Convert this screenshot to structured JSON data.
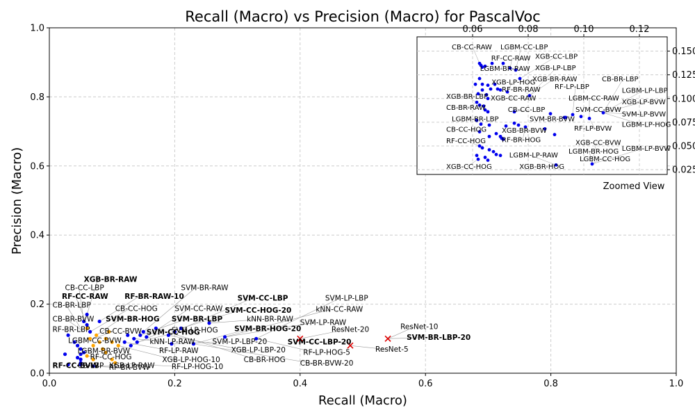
{
  "chart_data": {
    "type": "scatter",
    "title": "Recall (Macro) vs Precision (Macro) for PascalVoc",
    "xlabel": "Recall (Macro)",
    "ylabel": "Precision (Macro)",
    "xlim": [
      0.0,
      1.0
    ],
    "ylim": [
      0.0,
      1.0
    ],
    "xticks": [
      "0.0",
      "0.2",
      "0.4",
      "0.6",
      "0.8",
      "1.0"
    ],
    "yticks": [
      "0.0",
      "0.2",
      "0.4",
      "0.6",
      "0.8",
      "1.0"
    ],
    "grid": true,
    "colors": {
      "blue_points": "#0000ee",
      "orange_points": "#ffa500",
      "red_markers": "#dd0000",
      "grid": "#cccccc",
      "leader_lines": "#999999"
    },
    "points": [
      {
        "x": 0.03,
        "y": 0.11,
        "c": "blue"
      },
      {
        "x": 0.04,
        "y": 0.09,
        "c": "blue"
      },
      {
        "x": 0.045,
        "y": 0.08,
        "c": "blue"
      },
      {
        "x": 0.05,
        "y": 0.07,
        "c": "blue"
      },
      {
        "x": 0.05,
        "y": 0.04,
        "c": "blue"
      },
      {
        "x": 0.05,
        "y": 0.03,
        "c": "blue"
      },
      {
        "x": 0.055,
        "y": 0.15,
        "c": "blue"
      },
      {
        "x": 0.055,
        "y": 0.06,
        "c": "blue"
      },
      {
        "x": 0.06,
        "y": 0.17,
        "c": "blue"
      },
      {
        "x": 0.06,
        "y": 0.14,
        "c": "blue"
      },
      {
        "x": 0.065,
        "y": 0.12,
        "c": "blue"
      },
      {
        "x": 0.07,
        "y": 0.02,
        "c": "blue"
      },
      {
        "x": 0.08,
        "y": 0.15,
        "c": "blue"
      },
      {
        "x": 0.025,
        "y": 0.055,
        "c": "blue"
      },
      {
        "x": 0.03,
        "y": 0.025,
        "c": "blue"
      },
      {
        "x": 0.045,
        "y": 0.045,
        "c": "blue"
      },
      {
        "x": 0.05,
        "y": 0.055,
        "c": "blue"
      },
      {
        "x": 0.05,
        "y": 0.025,
        "c": "blue"
      },
      {
        "x": 0.12,
        "y": 0.09,
        "c": "blue"
      },
      {
        "x": 0.125,
        "y": 0.11,
        "c": "blue"
      },
      {
        "x": 0.13,
        "y": 0.08,
        "c": "blue"
      },
      {
        "x": 0.135,
        "y": 0.1,
        "c": "blue"
      },
      {
        "x": 0.14,
        "y": 0.09,
        "c": "blue"
      },
      {
        "x": 0.145,
        "y": 0.11,
        "c": "blue"
      },
      {
        "x": 0.15,
        "y": 0.12,
        "c": "blue"
      },
      {
        "x": 0.155,
        "y": 0.105,
        "c": "blue"
      },
      {
        "x": 0.17,
        "y": 0.13,
        "c": "blue"
      },
      {
        "x": 0.19,
        "y": 0.11,
        "c": "blue"
      },
      {
        "x": 0.195,
        "y": 0.085,
        "c": "blue"
      },
      {
        "x": 0.2,
        "y": 0.12,
        "c": "blue"
      },
      {
        "x": 0.21,
        "y": 0.13,
        "c": "blue"
      },
      {
        "x": 0.23,
        "y": 0.085,
        "c": "blue"
      },
      {
        "x": 0.255,
        "y": 0.145,
        "c": "blue"
      },
      {
        "x": 0.28,
        "y": 0.105,
        "c": "blue"
      },
      {
        "x": 0.33,
        "y": 0.1,
        "c": "blue"
      },
      {
        "x": 0.06,
        "y": 0.13,
        "c": "orange"
      },
      {
        "x": 0.065,
        "y": 0.1,
        "c": "orange"
      },
      {
        "x": 0.07,
        "y": 0.08,
        "c": "orange"
      },
      {
        "x": 0.075,
        "y": 0.11,
        "c": "orange"
      },
      {
        "x": 0.08,
        "y": 0.09,
        "c": "orange"
      },
      {
        "x": 0.085,
        "y": 0.07,
        "c": "orange"
      },
      {
        "x": 0.09,
        "y": 0.06,
        "c": "orange"
      },
      {
        "x": 0.095,
        "y": 0.12,
        "c": "orange"
      },
      {
        "x": 0.1,
        "y": 0.04,
        "c": "orange"
      },
      {
        "x": 0.105,
        "y": 0.03,
        "c": "orange"
      },
      {
        "x": 0.11,
        "y": 0.08,
        "c": "orange"
      },
      {
        "x": 0.06,
        "y": 0.05,
        "c": "orange"
      },
      {
        "x": 0.07,
        "y": 0.04,
        "c": "orange"
      },
      {
        "x": 0.09,
        "y": 0.1,
        "c": "orange"
      },
      {
        "x": 0.1,
        "y": 0.09,
        "c": "orange"
      }
    ],
    "red_markers": [
      {
        "x": 0.4,
        "y": 0.1,
        "label": "ResNet-20"
      },
      {
        "x": 0.48,
        "y": 0.08,
        "label": "ResNet-5"
      },
      {
        "x": 0.54,
        "y": 0.1,
        "label": "ResNet-10"
      }
    ],
    "annotations": [
      {
        "text": "XGB-BR-RAW",
        "bold": true,
        "tx": 0.055,
        "ty": 0.265,
        "px": 0.06,
        "py": 0.17
      },
      {
        "text": "CB-CC-LBP",
        "bold": false,
        "tx": 0.025,
        "ty": 0.24,
        "px": 0.055,
        "py": 0.15
      },
      {
        "text": "RF-CC-RAW",
        "bold": true,
        "tx": 0.02,
        "ty": 0.215,
        "px": 0.06,
        "py": 0.14
      },
      {
        "text": "CB-BR-LBP",
        "bold": false,
        "tx": 0.005,
        "ty": 0.19,
        "px": 0.05,
        "py": 0.13
      },
      {
        "text": "CB-BR-BVW",
        "bold": false,
        "tx": 0.005,
        "ty": 0.15,
        "px": 0.055,
        "py": 0.12
      },
      {
        "text": "RF-BR-LBP",
        "bold": false,
        "tx": 0.005,
        "ty": 0.12,
        "px": 0.03,
        "py": 0.11
      },
      {
        "text": "LGBM-CC-BVW",
        "bold": false,
        "tx": 0.03,
        "ty": 0.088,
        "px": 0.045,
        "py": 0.08
      },
      {
        "text": "LGBM-BR-BVW",
        "bold": false,
        "tx": 0.045,
        "ty": 0.057,
        "px": 0.05,
        "py": 0.07
      },
      {
        "text": "RF-CC-HOG",
        "bold": false,
        "tx": 0.065,
        "ty": 0.04,
        "px": 0.06,
        "py": 0.05
      },
      {
        "text": "RF-CC-BVW",
        "bold": true,
        "tx": 0.005,
        "ty": 0.015,
        "px": 0.03,
        "py": 0.025
      },
      {
        "text": "CB-LBP",
        "bold": false,
        "tx": 0.045,
        "ty": 0.015,
        "px": 0.05,
        "py": 0.03
      },
      {
        "text": "XGB-LP-RAW",
        "bold": false,
        "tx": 0.095,
        "ty": 0.015,
        "px": 0.07,
        "py": 0.02
      },
      {
        "text": "RF-BR-BVW",
        "bold": false,
        "tx": 0.095,
        "ty": 0.01,
        "px": 0.07,
        "py": 0.02
      },
      {
        "text": "RF-BR-RAW-10",
        "bold": true,
        "tx": 0.12,
        "ty": 0.215,
        "px": 0.08,
        "py": 0.15
      },
      {
        "text": "SVM-BR-RAW",
        "bold": false,
        "tx": 0.21,
        "ty": 0.24,
        "px": 0.15,
        "py": 0.12
      },
      {
        "text": "CB-CC-HOG",
        "bold": false,
        "tx": 0.105,
        "ty": 0.18,
        "px": 0.065,
        "py": 0.12
      },
      {
        "text": "SVM-BR-HOG",
        "bold": true,
        "tx": 0.09,
        "ty": 0.15,
        "px": 0.075,
        "py": 0.11
      },
      {
        "text": "CB-CC-BVW",
        "bold": false,
        "tx": 0.08,
        "ty": 0.115,
        "px": 0.07,
        "py": 0.1
      },
      {
        "text": "SVM-CC-RAW",
        "bold": false,
        "tx": 0.2,
        "ty": 0.18,
        "px": 0.155,
        "py": 0.105
      },
      {
        "text": "SVM-BR-LBP",
        "bold": true,
        "tx": 0.195,
        "ty": 0.15,
        "px": 0.145,
        "py": 0.11
      },
      {
        "text": "SVM-LP-HOG",
        "bold": false,
        "tx": 0.195,
        "ty": 0.118,
        "px": 0.14,
        "py": 0.09
      },
      {
        "text": "SVM-CC-HOG",
        "bold": true,
        "tx": 0.155,
        "ty": 0.112,
        "px": 0.13,
        "py": 0.08
      },
      {
        "text": "kNN-LP-RAW",
        "bold": false,
        "tx": 0.16,
        "ty": 0.085,
        "px": 0.135,
        "py": 0.1
      },
      {
        "text": "RF-LP-RAW",
        "bold": false,
        "tx": 0.175,
        "ty": 0.058,
        "px": 0.12,
        "py": 0.09
      },
      {
        "text": "XGB-LP-HOG-10",
        "bold": false,
        "tx": 0.18,
        "ty": 0.032,
        "px": 0.11,
        "py": 0.08
      },
      {
        "text": "RF-LP-HOG-10",
        "bold": false,
        "tx": 0.195,
        "ty": 0.012,
        "px": 0.1,
        "py": 0.03
      },
      {
        "text": "SVM-CC-LBP",
        "bold": true,
        "tx": 0.3,
        "ty": 0.21,
        "px": 0.2,
        "py": 0.12
      },
      {
        "text": "SVM-CC-HOG-20",
        "bold": true,
        "tx": 0.28,
        "ty": 0.175,
        "px": 0.21,
        "py": 0.13
      },
      {
        "text": "kNN-BR-RAW",
        "bold": false,
        "tx": 0.315,
        "ty": 0.15,
        "px": 0.255,
        "py": 0.145
      },
      {
        "text": "SVM-BR-HOG-20",
        "bold": true,
        "tx": 0.295,
        "ty": 0.122,
        "px": 0.23,
        "py": 0.085
      },
      {
        "text": "SVM-LP-LBP-20",
        "bold": false,
        "tx": 0.26,
        "ty": 0.085,
        "px": 0.195,
        "py": 0.085
      },
      {
        "text": "XGB-LP-LBP-20",
        "bold": false,
        "tx": 0.29,
        "ty": 0.06,
        "px": 0.19,
        "py": 0.11
      },
      {
        "text": "CB-BR-HOG",
        "bold": false,
        "tx": 0.31,
        "ty": 0.032,
        "px": 0.17,
        "py": 0.13
      },
      {
        "text": "SVM-LP-LBP",
        "bold": false,
        "tx": 0.44,
        "ty": 0.21,
        "px": 0.33,
        "py": 0.1
      },
      {
        "text": "kNN-CC-RAW",
        "bold": false,
        "tx": 0.425,
        "ty": 0.178,
        "px": 0.28,
        "py": 0.105
      },
      {
        "text": "SVM-LP-RAW",
        "bold": false,
        "tx": 0.4,
        "ty": 0.14,
        "px": 0.28,
        "py": 0.105
      },
      {
        "text": "ResNet-20",
        "bold": false,
        "tx": 0.45,
        "ty": 0.12,
        "px": 0.4,
        "py": 0.1
      },
      {
        "text": "SVM-CC-LBP-20",
        "bold": true,
        "tx": 0.38,
        "ty": 0.083,
        "px": 0.48,
        "py": 0.09
      },
      {
        "text": "RF-LP-HOG-5",
        "bold": false,
        "tx": 0.405,
        "ty": 0.053,
        "px": 0.33,
        "py": 0.1
      },
      {
        "text": "CB-BR-BVW-20",
        "bold": false,
        "tx": 0.4,
        "ty": 0.022,
        "px": 0.23,
        "py": 0.085
      },
      {
        "text": "ResNet-10",
        "bold": false,
        "tx": 0.56,
        "ty": 0.128,
        "px": 0.54,
        "py": 0.1
      },
      {
        "text": "SVM-BR-LBP-20",
        "bold": true,
        "tx": 0.57,
        "ty": 0.097,
        "px": 0.54,
        "py": 0.1
      },
      {
        "text": "ResNet-5",
        "bold": false,
        "tx": 0.52,
        "ty": 0.062,
        "px": 0.48,
        "py": 0.08
      }
    ],
    "inset": {
      "label": "Zoomed View",
      "xlim": [
        0.04,
        0.13
      ],
      "ylim": [
        0.02,
        0.165
      ],
      "xticks": [
        "0.06",
        "0.08",
        "0.10",
        "0.12"
      ],
      "yticks": [
        "0.025",
        "0.050",
        "0.075",
        "0.100",
        "0.125",
        "0.150"
      ],
      "points": [
        {
          "x": 0.0625,
          "y": 0.137
        },
        {
          "x": 0.063,
          "y": 0.135
        },
        {
          "x": 0.0635,
          "y": 0.133
        },
        {
          "x": 0.0645,
          "y": 0.134
        },
        {
          "x": 0.067,
          "y": 0.137
        },
        {
          "x": 0.071,
          "y": 0.137
        },
        {
          "x": 0.0735,
          "y": 0.132
        },
        {
          "x": 0.0755,
          "y": 0.13
        },
        {
          "x": 0.077,
          "y": 0.121
        },
        {
          "x": 0.0625,
          "y": 0.121
        },
        {
          "x": 0.061,
          "y": 0.115
        },
        {
          "x": 0.0635,
          "y": 0.115
        },
        {
          "x": 0.0655,
          "y": 0.114
        },
        {
          "x": 0.068,
          "y": 0.115
        },
        {
          "x": 0.0665,
          "y": 0.11
        },
        {
          "x": 0.069,
          "y": 0.11
        },
        {
          "x": 0.07,
          "y": 0.109
        },
        {
          "x": 0.0635,
          "y": 0.109
        },
        {
          "x": 0.062,
          "y": 0.105
        },
        {
          "x": 0.065,
          "y": 0.104
        },
        {
          "x": 0.0725,
          "y": 0.107
        },
        {
          "x": 0.0805,
          "y": 0.103
        },
        {
          "x": 0.0655,
          "y": 0.1
        },
        {
          "x": 0.0615,
          "y": 0.096
        },
        {
          "x": 0.0625,
          "y": 0.093
        },
        {
          "x": 0.064,
          "y": 0.092
        },
        {
          "x": 0.0645,
          "y": 0.088
        },
        {
          "x": 0.0655,
          "y": 0.086
        },
        {
          "x": 0.075,
          "y": 0.086
        },
        {
          "x": 0.088,
          "y": 0.084
        },
        {
          "x": 0.093,
          "y": 0.08
        },
        {
          "x": 0.0935,
          "y": 0.08
        },
        {
          "x": 0.096,
          "y": 0.083
        },
        {
          "x": 0.099,
          "y": 0.081
        },
        {
          "x": 0.102,
          "y": 0.079
        },
        {
          "x": 0.107,
          "y": 0.085
        },
        {
          "x": 0.0615,
          "y": 0.077
        },
        {
          "x": 0.063,
          "y": 0.073
        },
        {
          "x": 0.066,
          "y": 0.072
        },
        {
          "x": 0.072,
          "y": 0.071
        },
        {
          "x": 0.075,
          "y": 0.074
        },
        {
          "x": 0.0765,
          "y": 0.072
        },
        {
          "x": 0.079,
          "y": 0.07
        },
        {
          "x": 0.086,
          "y": 0.068
        },
        {
          "x": 0.0895,
          "y": 0.062
        },
        {
          "x": 0.0625,
          "y": 0.065
        },
        {
          "x": 0.066,
          "y": 0.06
        },
        {
          "x": 0.0685,
          "y": 0.063
        },
        {
          "x": 0.07,
          "y": 0.06
        },
        {
          "x": 0.0705,
          "y": 0.058
        },
        {
          "x": 0.071,
          "y": 0.057
        },
        {
          "x": 0.0625,
          "y": 0.05
        },
        {
          "x": 0.0635,
          "y": 0.048
        },
        {
          "x": 0.066,
          "y": 0.046
        },
        {
          "x": 0.0675,
          "y": 0.044
        },
        {
          "x": 0.0685,
          "y": 0.041
        },
        {
          "x": 0.07,
          "y": 0.04
        },
        {
          "x": 0.0615,
          "y": 0.04
        },
        {
          "x": 0.062,
          "y": 0.036
        },
        {
          "x": 0.0645,
          "y": 0.038
        },
        {
          "x": 0.0655,
          "y": 0.035
        },
        {
          "x": 0.09,
          "y": 0.03
        },
        {
          "x": 0.103,
          "y": 0.031
        }
      ],
      "labels": [
        {
          "text": "CB-CC-RAW",
          "tx": 0.0525,
          "ty": 0.152
        },
        {
          "text": "LGBM-CC-LBP",
          "tx": 0.07,
          "ty": 0.152
        },
        {
          "text": "RF-CC-RAW",
          "tx": 0.0667,
          "ty": 0.14
        },
        {
          "text": "XGB-CC-LBP",
          "tx": 0.0825,
          "ty": 0.142
        },
        {
          "text": "LGBM-BR-RAW",
          "tx": 0.0627,
          "ty": 0.129
        },
        {
          "text": "XGB-LP-LBP",
          "tx": 0.0825,
          "ty": 0.13
        },
        {
          "text": "XGB-BR-RAW",
          "tx": 0.0815,
          "ty": 0.118
        },
        {
          "text": "CB-BR-LBP",
          "tx": 0.1065,
          "ty": 0.118
        },
        {
          "text": "XGB-LP-HOG",
          "tx": 0.0668,
          "ty": 0.115
        },
        {
          "text": "RF-LP-LBP",
          "tx": 0.0895,
          "ty": 0.11
        },
        {
          "text": "RF-BR-RAW",
          "tx": 0.0705,
          "ty": 0.107
        },
        {
          "text": "LGBM-LP-LBP",
          "tx": 0.1137,
          "ty": 0.106
        },
        {
          "text": "XGB-BR-LBP",
          "tx": 0.0505,
          "ty": 0.1
        },
        {
          "text": "XGB-CC-RAW",
          "tx": 0.0665,
          "ty": 0.098
        },
        {
          "text": "LGBM-CC-RAW",
          "tx": 0.0945,
          "ty": 0.098
        },
        {
          "text": "XGB-LP-BVW",
          "tx": 0.1137,
          "ty": 0.094
        },
        {
          "text": "CB-BR-RAW",
          "tx": 0.0505,
          "ty": 0.088
        },
        {
          "text": "CB-CC-LBP",
          "tx": 0.0727,
          "ty": 0.086
        },
        {
          "text": "SVM-CC-BVW",
          "tx": 0.097,
          "ty": 0.086
        },
        {
          "text": "SVM-LP-BVW",
          "tx": 0.1137,
          "ty": 0.081
        },
        {
          "text": "LGBM-BR-LBP",
          "tx": 0.0525,
          "ty": 0.076
        },
        {
          "text": "SVM-BR-BVW",
          "tx": 0.0805,
          "ty": 0.076
        },
        {
          "text": "LGBM-LP-HOG",
          "tx": 0.1137,
          "ty": 0.07
        },
        {
          "text": "CB-CC-HOG",
          "tx": 0.0505,
          "ty": 0.065
        },
        {
          "text": "XGB-BR-BVW",
          "tx": 0.0705,
          "ty": 0.064
        },
        {
          "text": "RF-LP-BVW",
          "tx": 0.0965,
          "ty": 0.066
        },
        {
          "text": "RF-CC-HOG",
          "tx": 0.0505,
          "ty": 0.053
        },
        {
          "text": "RF-BR-HOG",
          "tx": 0.0705,
          "ty": 0.054
        },
        {
          "text": "XGB-CC-BVW",
          "tx": 0.097,
          "ty": 0.051
        },
        {
          "text": "LGBM-BR-HOG",
          "tx": 0.0945,
          "ty": 0.042
        },
        {
          "text": "LGBM-LP-BVW",
          "tx": 0.1137,
          "ty": 0.045
        },
        {
          "text": "LGBM-LP-RAW",
          "tx": 0.0732,
          "ty": 0.038
        },
        {
          "text": "LGBM-CC-HOG",
          "tx": 0.0985,
          "ty": 0.034
        },
        {
          "text": "XGB-CC-HOG",
          "tx": 0.0505,
          "ty": 0.026
        },
        {
          "text": "XGB-BR-HOG",
          "tx": 0.0768,
          "ty": 0.026
        }
      ]
    }
  }
}
